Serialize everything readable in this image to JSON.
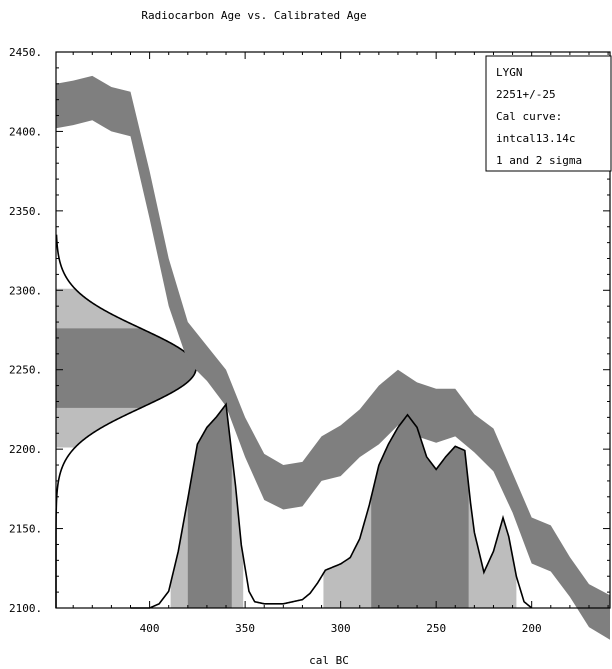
{
  "chart_data": {
    "type": "area",
    "title": "Radiocarbon Age vs. Calibrated Age",
    "xlabel": "cal BC",
    "ylabel": "",
    "x_reversed": true,
    "xlim": [
      449,
      159
    ],
    "ylim": [
      2100,
      2450
    ],
    "xticks": [
      "400",
      "350",
      "300",
      "250",
      "200"
    ],
    "xtick_values": [
      400,
      350,
      300,
      250,
      200
    ],
    "yticks": [
      "2100.",
      "2150.",
      "2200.",
      "2250.",
      "2300.",
      "2350.",
      "2400.",
      "2450."
    ],
    "ytick_values": [
      2100,
      2150,
      2200,
      2250,
      2300,
      2350,
      2400,
      2450
    ],
    "legend": {
      "placement": "top-right",
      "lines": [
        "LYGN",
        "2251+/-25",
        "Cal curve:",
        "intcal13.14c",
        "1 and 2 sigma"
      ]
    },
    "measurement": {
      "mean": 2251,
      "error": 25
    },
    "calibration_curve": {
      "name": "intcal13.14c",
      "x": [
        449,
        440,
        430,
        420,
        410,
        400,
        390,
        380,
        370,
        360,
        350,
        340,
        330,
        320,
        310,
        300,
        290,
        280,
        270,
        260,
        250,
        240,
        230,
        220,
        210,
        200,
        190,
        180,
        170,
        159
      ],
      "upper": [
        2430,
        2432,
        2435,
        2428,
        2425,
        2375,
        2320,
        2280,
        2265,
        2250,
        2220,
        2197,
        2190,
        2192,
        2208,
        2215,
        2225,
        2240,
        2250,
        2242,
        2238,
        2238,
        2222,
        2213,
        2185,
        2157,
        2152,
        2132,
        2115,
        2108
      ],
      "lower": [
        2402,
        2404,
        2407,
        2400,
        2397,
        2345,
        2290,
        2255,
        2243,
        2227,
        2195,
        2168,
        2162,
        2164,
        2180,
        2183,
        2195,
        2203,
        2215,
        2208,
        2204,
        2208,
        2198,
        2186,
        2160,
        2128,
        2123,
        2107,
        2088,
        2080
      ]
    },
    "calibrated_distribution": {
      "x": [
        449,
        410,
        400,
        395,
        390,
        385,
        380,
        375,
        370,
        365,
        360,
        355,
        352,
        348,
        345,
        340,
        330,
        320,
        316,
        312,
        308,
        300,
        295,
        290,
        285,
        280,
        275,
        270,
        265,
        260,
        255,
        250,
        245,
        240,
        235,
        232,
        230,
        225,
        220,
        215,
        212,
        208,
        204,
        200,
        159
      ],
      "prob": [
        0.0,
        0.0,
        0.0,
        0.02,
        0.08,
        0.27,
        0.52,
        0.78,
        0.86,
        0.91,
        0.97,
        0.58,
        0.3,
        0.08,
        0.03,
        0.02,
        0.02,
        0.04,
        0.07,
        0.12,
        0.18,
        0.21,
        0.24,
        0.33,
        0.49,
        0.68,
        0.78,
        0.86,
        0.92,
        0.86,
        0.72,
        0.66,
        0.72,
        0.77,
        0.75,
        0.5,
        0.36,
        0.17,
        0.27,
        0.43,
        0.34,
        0.15,
        0.03,
        0.0,
        0.0
      ],
      "sigma2_ranges": [
        [
          389,
          351
        ],
        [
          309,
          208
        ]
      ],
      "sigma1_ranges": [
        [
          380,
          357
        ],
        [
          284,
          233
        ]
      ]
    }
  }
}
